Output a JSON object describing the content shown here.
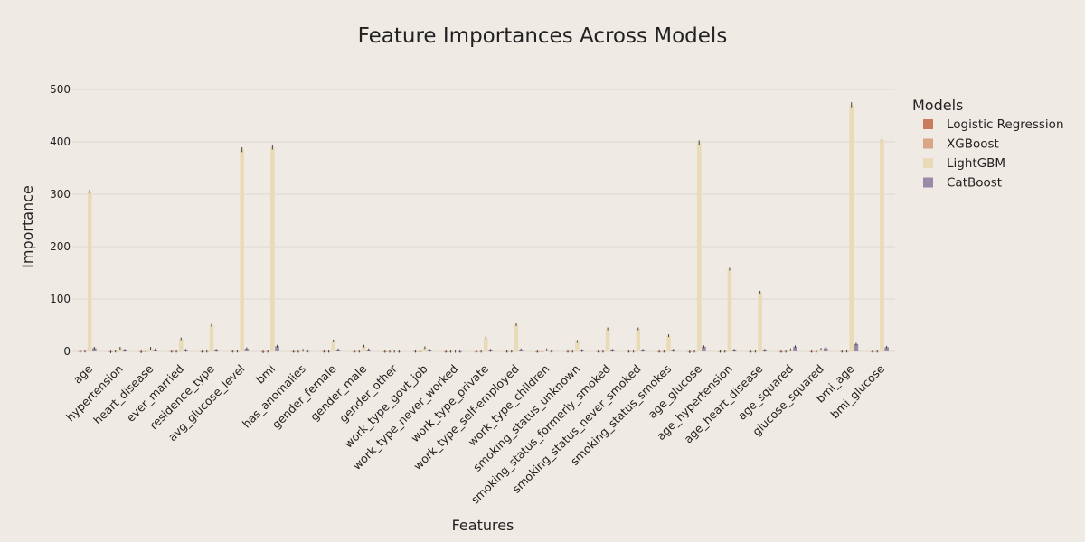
{
  "chart_data": {
    "type": "bar",
    "title": "Feature Importances Across Models",
    "xlabel": "Features",
    "ylabel": "Importance",
    "ylim": [
      -12,
      510
    ],
    "yticks": [
      0,
      100,
      200,
      300,
      400,
      500
    ],
    "grid": true,
    "legend": {
      "title": "Models",
      "placement": "right"
    },
    "categories": [
      "age",
      "hypertension",
      "heart_disease",
      "ever_married",
      "residence_type",
      "avg_glucose_level",
      "bmi",
      "has_anomalies",
      "gender_female",
      "gender_male",
      "gender_other",
      "work_type_govt_job",
      "work_type_never_worked",
      "work_type_private",
      "work_type_self-employed",
      "work_type_children",
      "smoking_status_unknown",
      "smoking_status_formerly_smoked",
      "smoking_status_never_smoked",
      "smoking_status_smokes",
      "age_glucose",
      "age_hypertension",
      "age_heart_disease",
      "age_squared",
      "glucose_squared",
      "bmi_age",
      "bmi_glucose"
    ],
    "series": [
      {
        "name": "Logistic Regression",
        "color": "#c97b5c",
        "values": [
          0.3,
          -1.0,
          -0.8,
          0.2,
          0.1,
          0.2,
          -0.9,
          0.1,
          0.2,
          0.1,
          0.0,
          0.2,
          0.0,
          0.1,
          0.2,
          0.0,
          0.1,
          0.1,
          0.1,
          0.1,
          -0.9,
          0.1,
          0.0,
          0.0,
          0.1,
          0.2,
          0.1
        ]
      },
      {
        "name": "XGBoost",
        "color": "#d7a684",
        "values": [
          0.5,
          0.4,
          0.3,
          0.3,
          0.2,
          0.4,
          0.2,
          0.1,
          0.2,
          0.2,
          0.0,
          0.3,
          0.0,
          0.2,
          0.3,
          0.1,
          0.2,
          0.2,
          0.2,
          0.2,
          0.3,
          0.2,
          0.2,
          0.1,
          0.1,
          0.4,
          0.3
        ]
      },
      {
        "name": "LightGBM",
        "color": "#eadbb8",
        "values": [
          305,
          6,
          6,
          24,
          50,
          385,
          390,
          2,
          20,
          10,
          0,
          7,
          0,
          26,
          51,
          3,
          19,
          43,
          43,
          30,
          398,
          157,
          113,
          3,
          4,
          470,
          405
        ]
      },
      {
        "name": "CatBoost",
        "color": "#9a8aa8",
        "values": [
          6.0,
          2.0,
          3.0,
          2.0,
          2.0,
          5.0,
          10.0,
          0.5,
          3.0,
          3.0,
          0.0,
          2.0,
          0.0,
          2.0,
          3.0,
          0.5,
          1.5,
          2.0,
          2.0,
          2.0,
          9.0,
          2.0,
          2.0,
          9.0,
          6.0,
          14.0,
          8.0
        ]
      }
    ]
  }
}
